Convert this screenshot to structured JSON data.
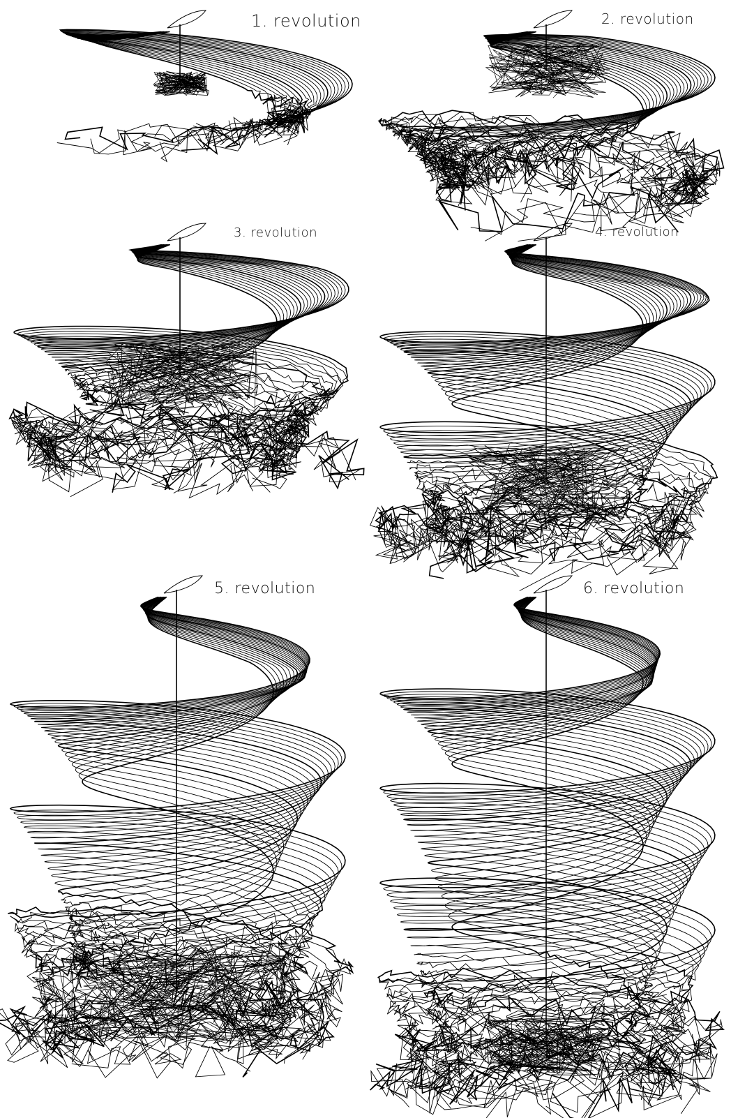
{
  "panels": [
    {
      "label": "1. revolution"
    },
    {
      "label": "2. revolution"
    },
    {
      "label": "3. revolution"
    },
    {
      "label": "4. revolution"
    },
    {
      "label": "5. revolution"
    },
    {
      "label": "6. revolution"
    }
  ]
}
